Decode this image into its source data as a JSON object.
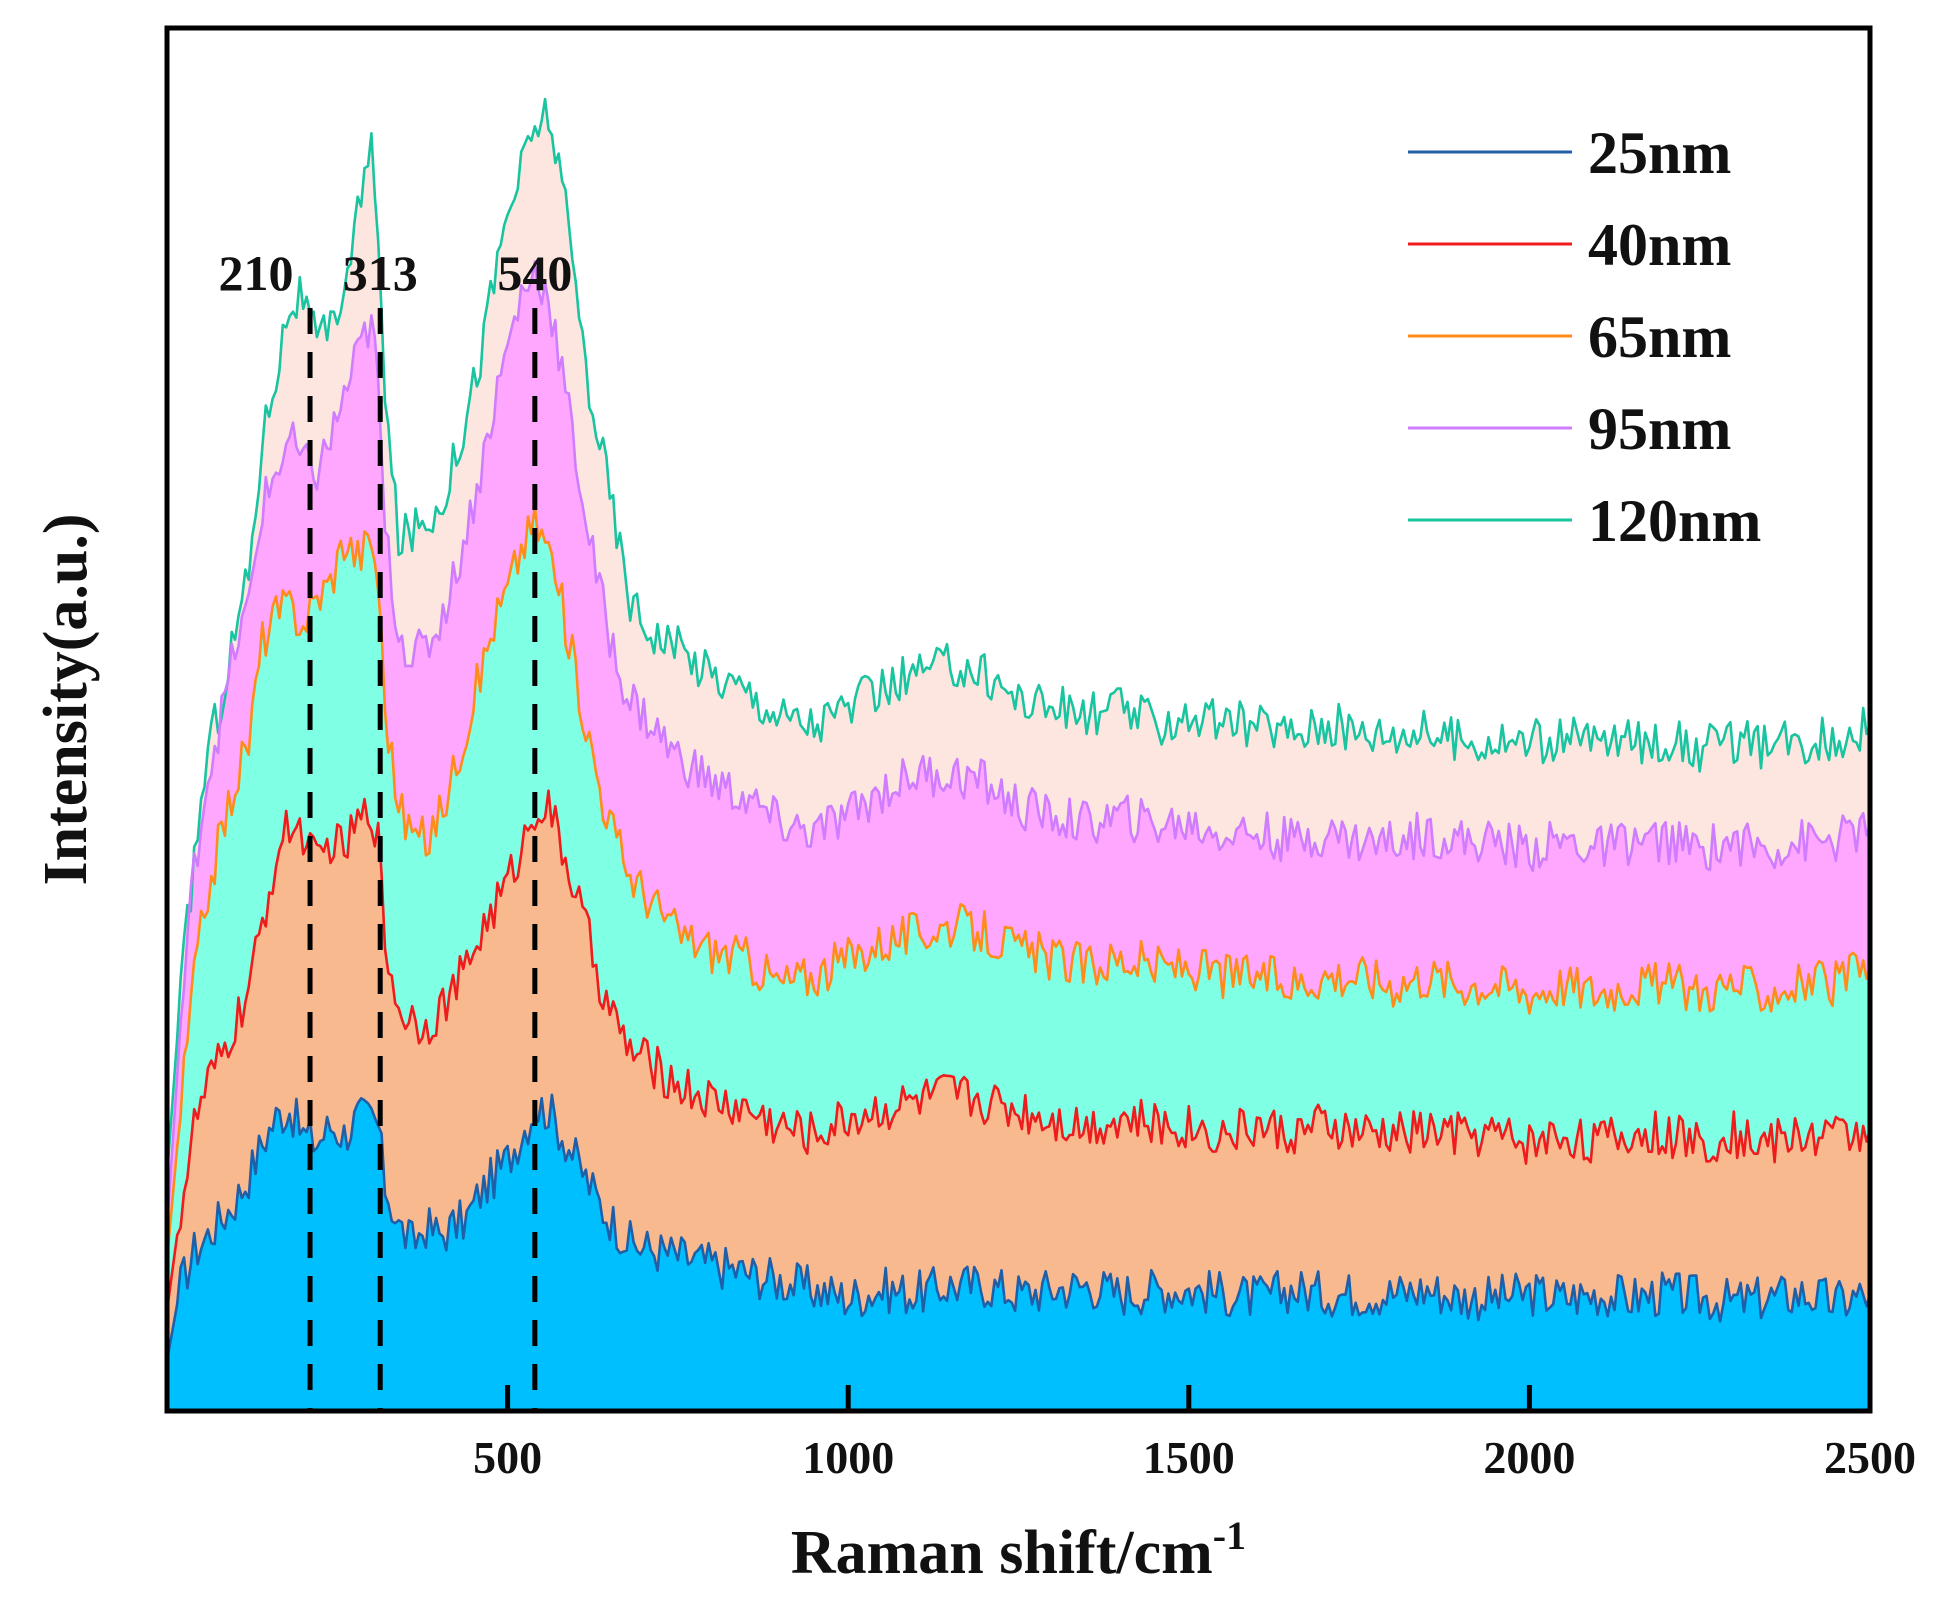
{
  "chart_data": {
    "type": "area",
    "title": "",
    "xlabel": "Raman shift/cm",
    "xlabel_superscript": "-1",
    "ylabel": "Intensity(a.u.)",
    "xlim": [
      0,
      2500
    ],
    "ylim": [
      0,
      16.5
    ],
    "xticks": [
      500,
      1000,
      1500,
      2000,
      2500
    ],
    "yticks_shown": false,
    "legend_position": "top-right",
    "peaks": [
      {
        "label": "210",
        "x": 210
      },
      {
        "label": "313",
        "x": 313
      },
      {
        "label": "540",
        "x": 540
      }
    ],
    "x": [
      0,
      20,
      40,
      60,
      80,
      100,
      120,
      140,
      160,
      180,
      200,
      220,
      240,
      260,
      280,
      300,
      310,
      320,
      340,
      360,
      380,
      400,
      420,
      440,
      460,
      480,
      500,
      520,
      540,
      560,
      580,
      600,
      620,
      640,
      660,
      680,
      700,
      750,
      800,
      850,
      900,
      950,
      1000,
      1050,
      1100,
      1150,
      1200,
      1250,
      1300,
      1350,
      1400,
      1450,
      1500,
      1550,
      1600,
      1650,
      1700,
      1750,
      1800,
      1850,
      1900,
      1950,
      2000,
      2050,
      2100,
      2150,
      2200,
      2250,
      2300,
      2350,
      2400,
      2450,
      2500
    ],
    "series": [
      {
        "name": "25nm",
        "line_color": "#1f5fa8",
        "fill_color": "#00bfff",
        "values": [
          0.6,
          1.5,
          1.9,
          2.1,
          2.3,
          2.5,
          2.8,
          3.2,
          3.5,
          3.6,
          3.3,
          3.2,
          3.4,
          3.3,
          3.5,
          3.5,
          3.4,
          2.7,
          2.2,
          2.0,
          2.2,
          2.1,
          2.2,
          2.3,
          2.6,
          2.8,
          3.0,
          3.3,
          3.6,
          3.6,
          3.3,
          3.0,
          2.7,
          2.4,
          2.2,
          2.0,
          1.95,
          1.85,
          1.75,
          1.65,
          1.55,
          1.45,
          1.35,
          1.45,
          1.4,
          1.5,
          1.5,
          1.4,
          1.45,
          1.5,
          1.4,
          1.45,
          1.45,
          1.4,
          1.35,
          1.45,
          1.4,
          1.4,
          1.4,
          1.45,
          1.35,
          1.35,
          1.4,
          1.35,
          1.4,
          1.35,
          1.4,
          1.35,
          1.3,
          1.35,
          1.4,
          1.3,
          1.4
        ]
      },
      {
        "name": "40nm",
        "line_color": "#ee1c1c",
        "fill_color": "#f9b98f",
        "values": [
          1.2,
          2.4,
          3.4,
          3.9,
          4.2,
          4.6,
          5.0,
          5.8,
          6.6,
          7.0,
          6.9,
          6.5,
          6.8,
          6.7,
          7.0,
          7.2,
          6.8,
          5.6,
          4.8,
          4.7,
          4.6,
          4.8,
          5.0,
          5.3,
          5.7,
          6.0,
          6.3,
          6.7,
          7.2,
          7.2,
          6.7,
          6.2,
          5.6,
          5.0,
          4.6,
          4.3,
          4.2,
          3.9,
          3.7,
          3.6,
          3.4,
          3.3,
          3.5,
          3.6,
          3.7,
          3.8,
          3.7,
          3.6,
          3.5,
          3.4,
          3.5,
          3.4,
          3.4,
          3.3,
          3.4,
          3.3,
          3.4,
          3.3,
          3.3,
          3.35,
          3.3,
          3.3,
          3.2,
          3.3,
          3.2,
          3.3,
          3.3,
          3.2,
          3.3,
          3.2,
          3.3,
          3.3,
          3.35
        ]
      },
      {
        "name": "65nm",
        "line_color": "#ff8c1a",
        "fill_color": "#7fffe4",
        "values": [
          1.8,
          3.6,
          5.2,
          6.2,
          6.9,
          7.5,
          8.0,
          9.2,
          9.5,
          9.6,
          9.4,
          9.7,
          9.9,
          10.4,
          10.2,
          10.4,
          9.9,
          8.4,
          7.2,
          6.9,
          6.8,
          7.1,
          7.6,
          8.2,
          8.8,
          9.4,
          9.8,
          10.3,
          10.6,
          10.3,
          9.6,
          8.8,
          8.0,
          7.3,
          6.8,
          6.4,
          6.2,
          5.7,
          5.5,
          5.4,
          5.1,
          5.2,
          5.4,
          5.6,
          5.7,
          5.8,
          5.7,
          5.5,
          5.4,
          5.3,
          5.4,
          5.3,
          5.3,
          5.2,
          5.2,
          5.1,
          5.2,
          5.2,
          5.1,
          5.2,
          5.1,
          5.1,
          5.0,
          5.1,
          5.0,
          5.1,
          5.1,
          5.0,
          5.1,
          5.0,
          5.1,
          5.1,
          5.3
        ]
      },
      {
        "name": "95nm",
        "line_color": "#cf7cff",
        "fill_color": "#ffa7ff",
        "values": [
          2.2,
          4.6,
          6.5,
          7.6,
          8.3,
          9.1,
          9.6,
          10.8,
          11.2,
          11.6,
          11.3,
          11.2,
          11.6,
          12.1,
          12.6,
          13.0,
          12.2,
          10.5,
          9.3,
          9.0,
          9.1,
          9.4,
          9.9,
          10.5,
          11.2,
          12.0,
          12.7,
          13.3,
          13.6,
          13.3,
          12.4,
          11.4,
          10.4,
          9.6,
          8.9,
          8.5,
          8.3,
          7.8,
          7.5,
          7.3,
          7.0,
          6.9,
          7.1,
          7.4,
          7.6,
          7.6,
          7.5,
          7.2,
          7.1,
          7.0,
          7.1,
          7.0,
          7.0,
          6.9,
          6.9,
          6.8,
          6.9,
          6.8,
          6.8,
          6.9,
          6.8,
          6.8,
          6.7,
          6.8,
          6.7,
          6.8,
          6.8,
          6.7,
          6.8,
          6.7,
          6.8,
          6.8,
          7.0
        ]
      },
      {
        "name": "120nm",
        "line_color": "#19c4a0",
        "fill_color": "#fde6e0",
        "values": [
          2.8,
          5.0,
          6.6,
          7.9,
          8.5,
          9.3,
          10.0,
          11.6,
          12.4,
          13.2,
          13.3,
          12.7,
          12.9,
          13.4,
          14.3,
          15.0,
          14.2,
          12.0,
          10.4,
          10.5,
          10.6,
          10.8,
          11.3,
          11.9,
          12.6,
          13.5,
          14.3,
          14.8,
          15.3,
          15.5,
          14.6,
          13.4,
          12.2,
          11.4,
          10.5,
          9.7,
          9.4,
          9.1,
          8.8,
          8.6,
          8.3,
          8.2,
          8.4,
          8.6,
          8.8,
          8.9,
          8.8,
          8.5,
          8.4,
          8.3,
          8.4,
          8.2,
          8.3,
          8.2,
          8.2,
          8.1,
          8.2,
          8.1,
          8.1,
          8.1,
          8.0,
          8.0,
          8.0,
          8.0,
          8.0,
          8.0,
          8.0,
          7.9,
          8.0,
          7.9,
          8.0,
          8.0,
          8.2
        ]
      }
    ]
  }
}
